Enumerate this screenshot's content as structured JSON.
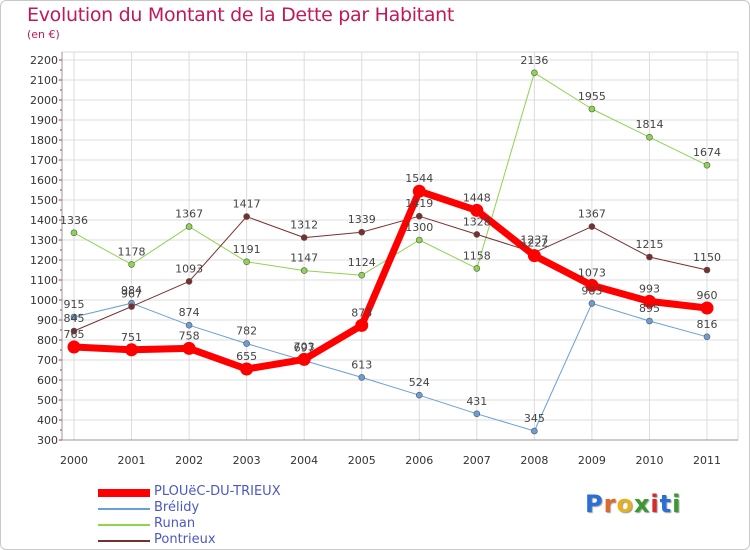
{
  "title": "Evolution du Montant de la Dette par Habitant",
  "unit_label": "(en €)",
  "logo": {
    "letters": [
      "P",
      "r",
      "o",
      "x",
      "i",
      "t",
      "i"
    ],
    "colors": [
      "#2a6fd6",
      "#e0662a",
      "#e8b01c",
      "#3a9a2f",
      "#d32a2a",
      "#2a6fd6",
      "#3a9a2f"
    ]
  },
  "chart_data": {
    "type": "line",
    "title": "Evolution du Montant de la Dette par Habitant",
    "ylabel": "(en €)",
    "xlabel": "",
    "x": [
      "2000",
      "2001",
      "2002",
      "2003",
      "2004",
      "2005",
      "2006",
      "2007",
      "2008",
      "2009",
      "2010",
      "2011"
    ],
    "ylim": [
      300,
      2200
    ],
    "ytick_step": 100,
    "grid": true,
    "legend_position": "bottom-left",
    "series": [
      {
        "name": "PLOUëC-DU-TRIEUX",
        "color": "#ff0000",
        "line_width": 7,
        "values": [
          765,
          751,
          758,
          655,
          703,
          873,
          1544,
          1448,
          1222,
          1073,
          993,
          960
        ]
      },
      {
        "name": "Brélidy",
        "color": "#6a9fd6",
        "line_width": 1,
        "values": [
          915,
          984,
          874,
          782,
          697,
          613,
          524,
          431,
          345,
          983,
          895,
          816
        ]
      },
      {
        "name": "Runan",
        "color": "#8ed44f",
        "line_width": 1,
        "values": [
          1336,
          1178,
          1367,
          1191,
          1147,
          1124,
          1300,
          1158,
          2136,
          1955,
          1814,
          1674
        ]
      },
      {
        "name": "Pontrieux",
        "color": "#7a2f2f",
        "line_width": 1,
        "values": [
          845,
          967,
          1093,
          1417,
          1312,
          1339,
          1419,
          1328,
          1237,
          1367,
          1215,
          1150
        ]
      }
    ]
  }
}
